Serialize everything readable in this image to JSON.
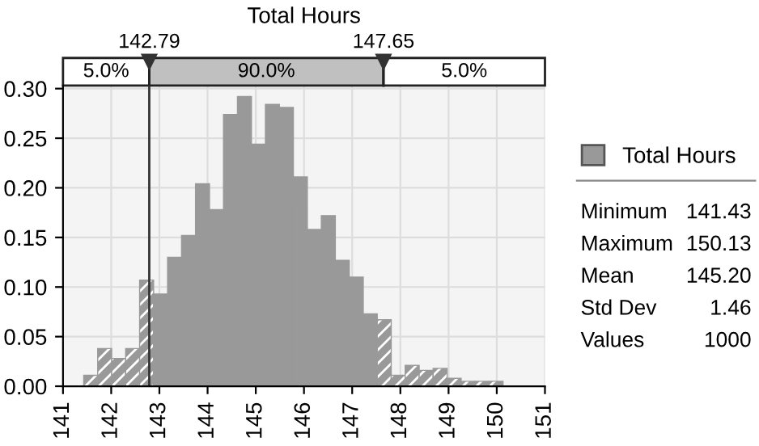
{
  "chart_data": {
    "type": "histogram",
    "title": "Total Hours",
    "bins": [
      141.43,
      141.72,
      142.01,
      142.3,
      142.59,
      142.88,
      143.17,
      143.46,
      143.75,
      144.04,
      144.33,
      144.62,
      144.91,
      145.2,
      145.49,
      145.78,
      146.07,
      146.36,
      146.65,
      146.94,
      147.23,
      147.52,
      147.81,
      148.1,
      148.39,
      148.68,
      148.97,
      149.26,
      149.55,
      149.84,
      150.13
    ],
    "series": [
      {
        "name": "Total Hours",
        "color": "#999999",
        "values": [
          0.011,
          0.038,
          0.028,
          0.038,
          0.107,
          0.093,
          0.13,
          0.152,
          0.204,
          0.178,
          0.274,
          0.292,
          0.244,
          0.284,
          0.281,
          0.211,
          0.158,
          0.172,
          0.127,
          0.11,
          0.073,
          0.067,
          0.011,
          0.021,
          0.016,
          0.018,
          0.008,
          0.005,
          0.005,
          0.005
        ]
      }
    ],
    "xlim": [
      141,
      151
    ],
    "xticks": [
      141,
      142,
      143,
      144,
      145,
      146,
      147,
      148,
      149,
      150,
      151
    ],
    "ylim": [
      0,
      0.303
    ],
    "yticks": [
      {
        "value": 0,
        "label": "0.00"
      },
      {
        "value": 0.05,
        "label": "0.05"
      },
      {
        "value": 0.1,
        "label": "0.10"
      },
      {
        "value": 0.15,
        "label": "0.15"
      },
      {
        "value": 0.2,
        "label": "0.20"
      },
      {
        "value": 0.25,
        "label": "0.25"
      },
      {
        "value": 0.3,
        "label": "0.30"
      }
    ],
    "ref_lines": [
      {
        "axis": "x",
        "value": 142.79,
        "label": "142.79",
        "line_style": "solid",
        "color": "#333333"
      },
      {
        "axis": "x",
        "value": 147.65,
        "label": "147.65"
      }
    ],
    "annotations": [
      "5.0%",
      "90.0%",
      "5.0%",
      "Minimum 141.43",
      "Maximum 150.13",
      "Mean 145.20",
      "Std Dev 1.46",
      "Values 1000"
    ],
    "grid": true,
    "legend": "right"
  }
}
